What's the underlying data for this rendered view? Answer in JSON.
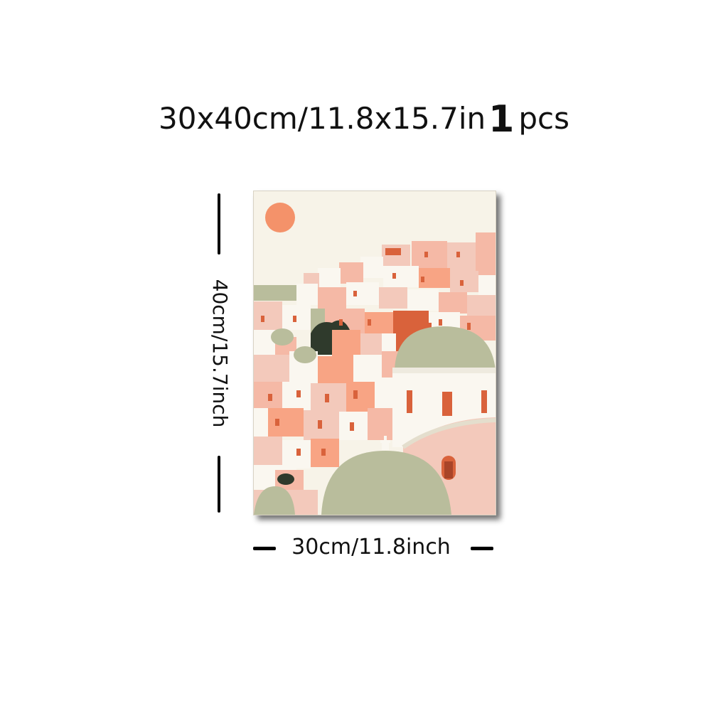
{
  "product": {
    "size_text": "30x40cm/11.8x15.7in",
    "quantity": "1",
    "quantity_unit": "pcs"
  },
  "dimensions": {
    "height_label": "40cm/15.7inch",
    "width_label": "30cm/11.8inch"
  },
  "artwork": {
    "subject": "hillside-village-with-domed-churches",
    "colors": {
      "sky": "#f7f3e8",
      "sun": "#f4926a",
      "dome": "#b9bd9c",
      "terracotta": "#d9623b",
      "peach": "#f5b9a6",
      "pink": "#f3c9bb",
      "white": "#faf7f0",
      "dark_green": "#2f3a2c"
    }
  }
}
